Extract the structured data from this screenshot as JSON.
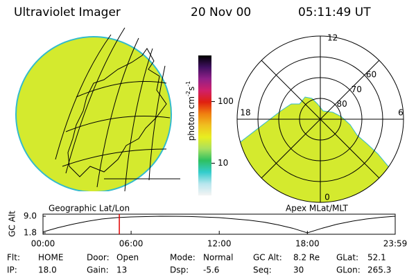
{
  "header": {
    "title": "Ultraviolet Imager",
    "date": "20 Nov 00",
    "time": "05:11:49 UT"
  },
  "colorbar": {
    "label": "photon cm",
    "exp1": "-2",
    "unit2": "s",
    "exp2": "-1",
    "log": true,
    "lim": [
      3,
      560
    ],
    "ticks": [
      10,
      100
    ],
    "colors": [
      "#f4f4f4",
      "#b8e6ee",
      "#33cccc",
      "#2ec060",
      "#a8e060",
      "#e8ee20",
      "#f0c020",
      "#f08010",
      "#e02010",
      "#d0206a",
      "#902088",
      "#401060",
      "#000000"
    ]
  },
  "images": {
    "left_label": "Geographic Lat/Lon",
    "right_label": "Apex MLat/MLT",
    "fill": "#d4ea2e"
  },
  "polar": {
    "mlt_labels": [
      "12",
      "6",
      "0",
      "18"
    ],
    "lat_lim": [
      50,
      90
    ],
    "lat_ticks": [
      60,
      70,
      80
    ]
  },
  "timeline": {
    "ylabel": "GC Alt",
    "ylim": [
      1.8,
      9.0
    ],
    "yticks": [
      {
        "value": 9.0,
        "label": "9.0"
      },
      1.8
    ],
    "xlim": [
      0,
      23.98
    ],
    "xticks": [
      {
        "value": 0,
        "label": "00:00"
      },
      {
        "value": 6,
        "label": "06:00"
      },
      {
        "value": 12,
        "label": "12:00"
      },
      {
        "value": 18,
        "label": "18:00"
      },
      {
        "value": 23.98,
        "label": "23:59"
      }
    ],
    "x": [
      0,
      1,
      2,
      3,
      4,
      5,
      6,
      8,
      10,
      12,
      14,
      15,
      16,
      17,
      18,
      19,
      20,
      21,
      22,
      23,
      23.98
    ],
    "values": [
      2.2,
      4.0,
      5.5,
      6.8,
      7.8,
      8.4,
      8.7,
      9.0,
      8.9,
      8.4,
      7.3,
      6.5,
      5.3,
      3.8,
      1.8,
      3.8,
      5.5,
      6.8,
      7.8,
      8.5,
      9.0
    ],
    "current": 5.197,
    "marker_color": "#e00000"
  },
  "footer": [
    [
      {
        "label": "Flt:",
        "value": "HOME"
      },
      {
        "label": "IP:",
        "value": "18.0"
      }
    ],
    [
      {
        "label": "Door:",
        "value": "Open"
      },
      {
        "label": "Gain:",
        "value": "13"
      }
    ],
    [
      {
        "label": "Mode:",
        "value": "Normal"
      },
      {
        "label": "Dsp:",
        "value": "-5.6"
      }
    ],
    [
      {
        "label": "GC Alt:",
        "value": "8.2 Re"
      },
      {
        "label": "Seq:",
        "value": "30"
      }
    ],
    [
      {
        "label": "GLat:",
        "value": "52.1"
      },
      {
        "label": "GLon:",
        "value": "265.3"
      }
    ]
  ]
}
